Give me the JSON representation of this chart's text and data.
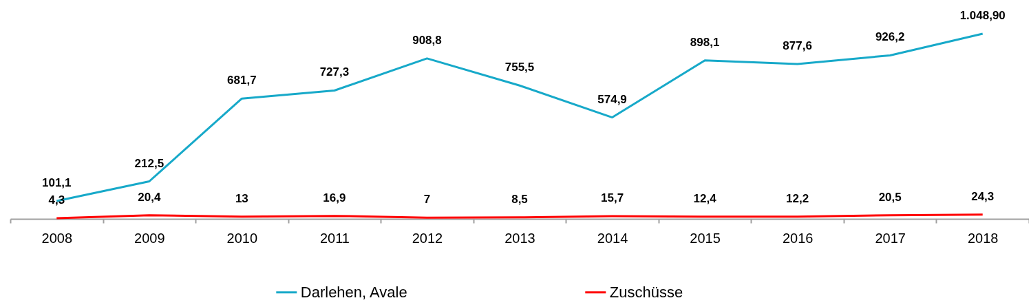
{
  "chart_data": {
    "type": "line",
    "categories": [
      "2008",
      "2009",
      "2010",
      "2011",
      "2012",
      "2013",
      "2014",
      "2015",
      "2016",
      "2017",
      "2018"
    ],
    "series": [
      {
        "name": "Darlehen, Avale",
        "color": "#17a9c9",
        "values": [
          101.1,
          212.5,
          681.7,
          727.3,
          908.8,
          755.5,
          574.9,
          898.1,
          877.6,
          926.2,
          1048.9
        ],
        "value_labels": [
          "101,1",
          "212,5",
          "681,7",
          "727,3",
          "908,8",
          "755,5",
          "574,9",
          "898,1",
          "877,6",
          "926,2",
          "1.048,90"
        ]
      },
      {
        "name": "Zuschüsse",
        "color": "#ff0000",
        "values": [
          4.3,
          20.4,
          13,
          16.9,
          7,
          8.5,
          15.7,
          12.4,
          12.2,
          20.5,
          24.3
        ],
        "value_labels": [
          "4,3",
          "20,4",
          "13",
          "16,9",
          "7",
          "8,5",
          "15,7",
          "12,4",
          "12,2",
          "20,5",
          "24,3"
        ]
      }
    ],
    "legend": "bottom",
    "marker": "none",
    "line_style": "solid",
    "grid": false
  }
}
